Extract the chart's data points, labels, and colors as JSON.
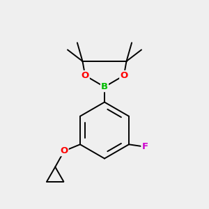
{
  "bg_color": "#efefef",
  "bond_color": "#000000",
  "bond_width": 1.4,
  "atom_colors": {
    "B": "#00bb00",
    "O": "#ff0000",
    "F": "#cc00cc",
    "C": "#000000"
  },
  "figsize": [
    3.0,
    3.0
  ],
  "dpi": 100,
  "xlim": [
    0.1,
    0.9
  ],
  "ylim": [
    0.08,
    0.97
  ]
}
